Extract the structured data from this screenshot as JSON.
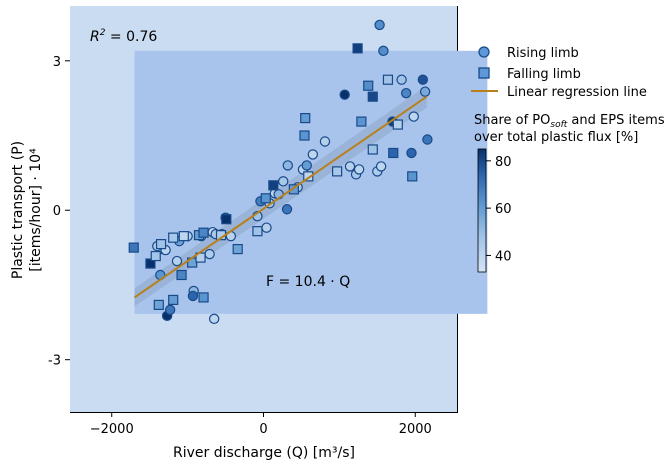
{
  "chart_data": {
    "type": "scatter",
    "xlabel": "River discharge (Q) [m³/s]",
    "ylabel_line1": "Plastic transport (P)",
    "ylabel_line2": "[items/hour] · 10⁴",
    "xlim": [
      -2550,
      2550
    ],
    "ylim": [
      -4.05,
      4.1
    ],
    "x_ticks": [
      {
        "value": -2000,
        "label": "−2000"
      },
      {
        "value": 0,
        "label": "0"
      },
      {
        "value": 2000,
        "label": "2000"
      }
    ],
    "y_ticks": [
      {
        "value": -3,
        "label": "-3"
      },
      {
        "value": 0,
        "label": "0"
      },
      {
        "value": 3,
        "label": "3"
      }
    ],
    "annotations": {
      "r2_label": "R",
      "r2_sup": "2",
      "r2_value": " = 0.76",
      "equation": "F = 10.4 · Q"
    },
    "legend": {
      "position": "right",
      "rising": "Rising limb",
      "falling": "Falling limb",
      "regression": "Linear regression line"
    },
    "colorbar": {
      "title_line1_prefix": "Share of PO",
      "title_line1_sub": "soft",
      "title_line1_suffix": " and EPS items",
      "title_line2": "over total plastic flux [%]",
      "range": [
        33,
        85
      ],
      "ticks": [
        40,
        60,
        80
      ]
    },
    "regression": {
      "x": [
        -1700,
        2150
      ],
      "y": [
        -1.75,
        2.28
      ],
      "color": "#b8801b"
    },
    "shaded_bands": [
      {
        "x": [
          -2550,
          2550
        ],
        "y": [
          -4.05,
          4.1
        ],
        "color": "#cadcf2"
      },
      {
        "x": [
          -1700,
          2950
        ],
        "y": [
          -2.08,
          3.2
        ],
        "color": "#a9c4ec"
      }
    ],
    "series": [
      {
        "name": "Rising limb",
        "marker": "circle",
        "points": [
          [
            -1330,
            -0.78,
            46
          ],
          [
            -1400,
            -0.72,
            45
          ],
          [
            -1290,
            -0.8,
            40
          ],
          [
            -1360,
            -1.3,
            62
          ],
          [
            -1270,
            -2.12,
            86
          ],
          [
            -1230,
            -2.0,
            70
          ],
          [
            -1140,
            -1.02,
            42
          ],
          [
            -1110,
            -0.62,
            58
          ],
          [
            -1000,
            -0.52,
            42
          ],
          [
            -920,
            -1.62,
            52
          ],
          [
            -930,
            -1.72,
            74
          ],
          [
            -820,
            -0.52,
            46
          ],
          [
            -710,
            -0.88,
            44
          ],
          [
            -670,
            -0.44,
            40
          ],
          [
            -630,
            -0.48,
            45
          ],
          [
            -650,
            -2.18,
            40
          ],
          [
            -550,
            -0.48,
            60
          ],
          [
            -430,
            -0.52,
            41
          ],
          [
            -500,
            -0.15,
            76
          ],
          [
            -80,
            -0.12,
            48
          ],
          [
            -40,
            0.18,
            68
          ],
          [
            40,
            -0.35,
            42
          ],
          [
            80,
            0.14,
            44
          ],
          [
            150,
            0.34,
            40
          ],
          [
            200,
            0.32,
            52
          ],
          [
            260,
            0.58,
            46
          ],
          [
            310,
            0.02,
            70
          ],
          [
            320,
            0.9,
            52
          ],
          [
            450,
            0.46,
            44
          ],
          [
            520,
            0.82,
            40
          ],
          [
            570,
            0.9,
            60
          ],
          [
            650,
            1.12,
            40
          ],
          [
            810,
            1.38,
            42
          ],
          [
            1070,
            2.32,
            86
          ],
          [
            1140,
            0.88,
            42
          ],
          [
            1220,
            0.72,
            46
          ],
          [
            1260,
            0.82,
            40
          ],
          [
            1500,
            0.78,
            44
          ],
          [
            1550,
            0.88,
            40
          ],
          [
            1530,
            3.72,
            64
          ],
          [
            1580,
            3.2,
            64
          ],
          [
            1700,
            1.78,
            82
          ],
          [
            1820,
            2.62,
            48
          ],
          [
            1880,
            2.35,
            66
          ],
          [
            1950,
            1.15,
            74
          ],
          [
            1980,
            1.88,
            40
          ],
          [
            2100,
            2.62,
            78
          ],
          [
            2130,
            2.38,
            56
          ],
          [
            2160,
            1.42,
            70
          ]
        ]
      },
      {
        "name": "Falling limb",
        "marker": "square",
        "points": [
          [
            -1710,
            -0.75,
            70
          ],
          [
            -1490,
            -1.07,
            85
          ],
          [
            -1420,
            -0.92,
            47
          ],
          [
            -1350,
            -0.68,
            48
          ],
          [
            -1380,
            -1.9,
            58
          ],
          [
            -1190,
            -1.8,
            60
          ],
          [
            -1190,
            -0.55,
            46
          ],
          [
            -1050,
            -0.52,
            40
          ],
          [
            -1080,
            -1.3,
            66
          ],
          [
            -940,
            -1.05,
            58
          ],
          [
            -850,
            -0.5,
            60
          ],
          [
            -790,
            -0.45,
            66
          ],
          [
            -790,
            -1.75,
            62
          ],
          [
            -830,
            -0.95,
            42
          ],
          [
            -560,
            -0.5,
            44
          ],
          [
            -490,
            -0.18,
            86
          ],
          [
            -340,
            -0.78,
            58
          ],
          [
            -80,
            -0.42,
            48
          ],
          [
            30,
            0.24,
            62
          ],
          [
            130,
            0.5,
            82
          ],
          [
            400,
            0.42,
            60
          ],
          [
            540,
            1.5,
            62
          ],
          [
            550,
            1.85,
            60
          ],
          [
            590,
            0.68,
            40
          ],
          [
            970,
            0.78,
            46
          ],
          [
            1240,
            3.25,
            82
          ],
          [
            1290,
            1.78,
            62
          ],
          [
            1380,
            2.5,
            64
          ],
          [
            1440,
            2.28,
            80
          ],
          [
            1440,
            1.22,
            48
          ],
          [
            1640,
            2.62,
            48
          ],
          [
            1710,
            1.15,
            74
          ],
          [
            1770,
            1.72,
            42
          ],
          [
            1960,
            0.68,
            62
          ]
        ]
      }
    ]
  }
}
